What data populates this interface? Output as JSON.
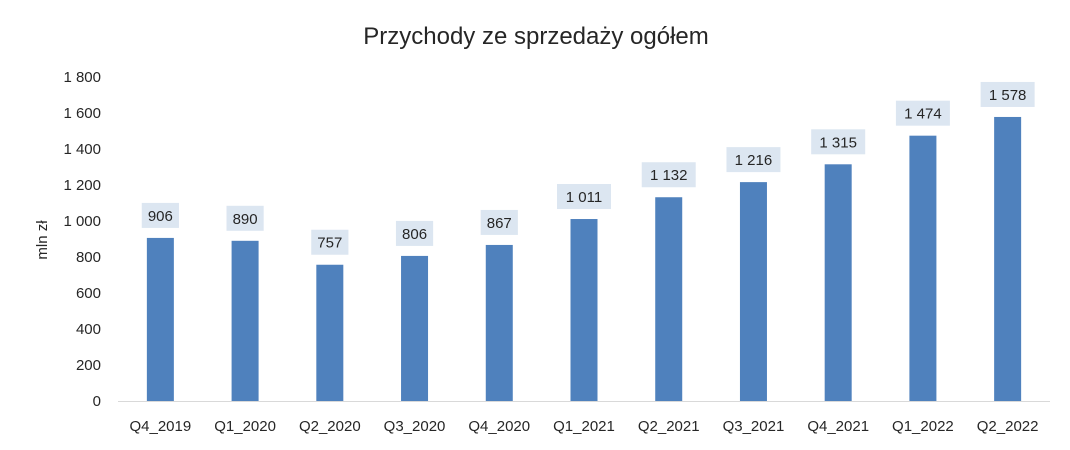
{
  "chart_data": {
    "type": "bar",
    "title": "Przychody ze sprzedaży ogółem",
    "ylabel": "mln zł",
    "xlabel": "",
    "ylim": [
      0,
      1800
    ],
    "ytick_step": 200,
    "ytick_labels": [
      "0",
      "200",
      "400",
      "600",
      "800",
      "1 000",
      "1 200",
      "1 400",
      "1 600",
      "1 800"
    ],
    "grid": false,
    "categories": [
      "Q4_2019",
      "Q1_2020",
      "Q2_2020",
      "Q3_2020",
      "Q4_2020",
      "Q1_2021",
      "Q2_2021",
      "Q3_2021",
      "Q4_2021",
      "Q1_2022",
      "Q2_2022"
    ],
    "values": [
      906,
      890,
      757,
      806,
      867,
      1011,
      1132,
      1216,
      1315,
      1474,
      1578
    ],
    "value_labels": [
      "906",
      "890",
      "757",
      "806",
      "867",
      "1 011",
      "1 132",
      "1 216",
      "1 315",
      "1 474",
      "1 578"
    ],
    "bar_color": "#4f81bd",
    "label_box_color": "#dce6f1"
  }
}
